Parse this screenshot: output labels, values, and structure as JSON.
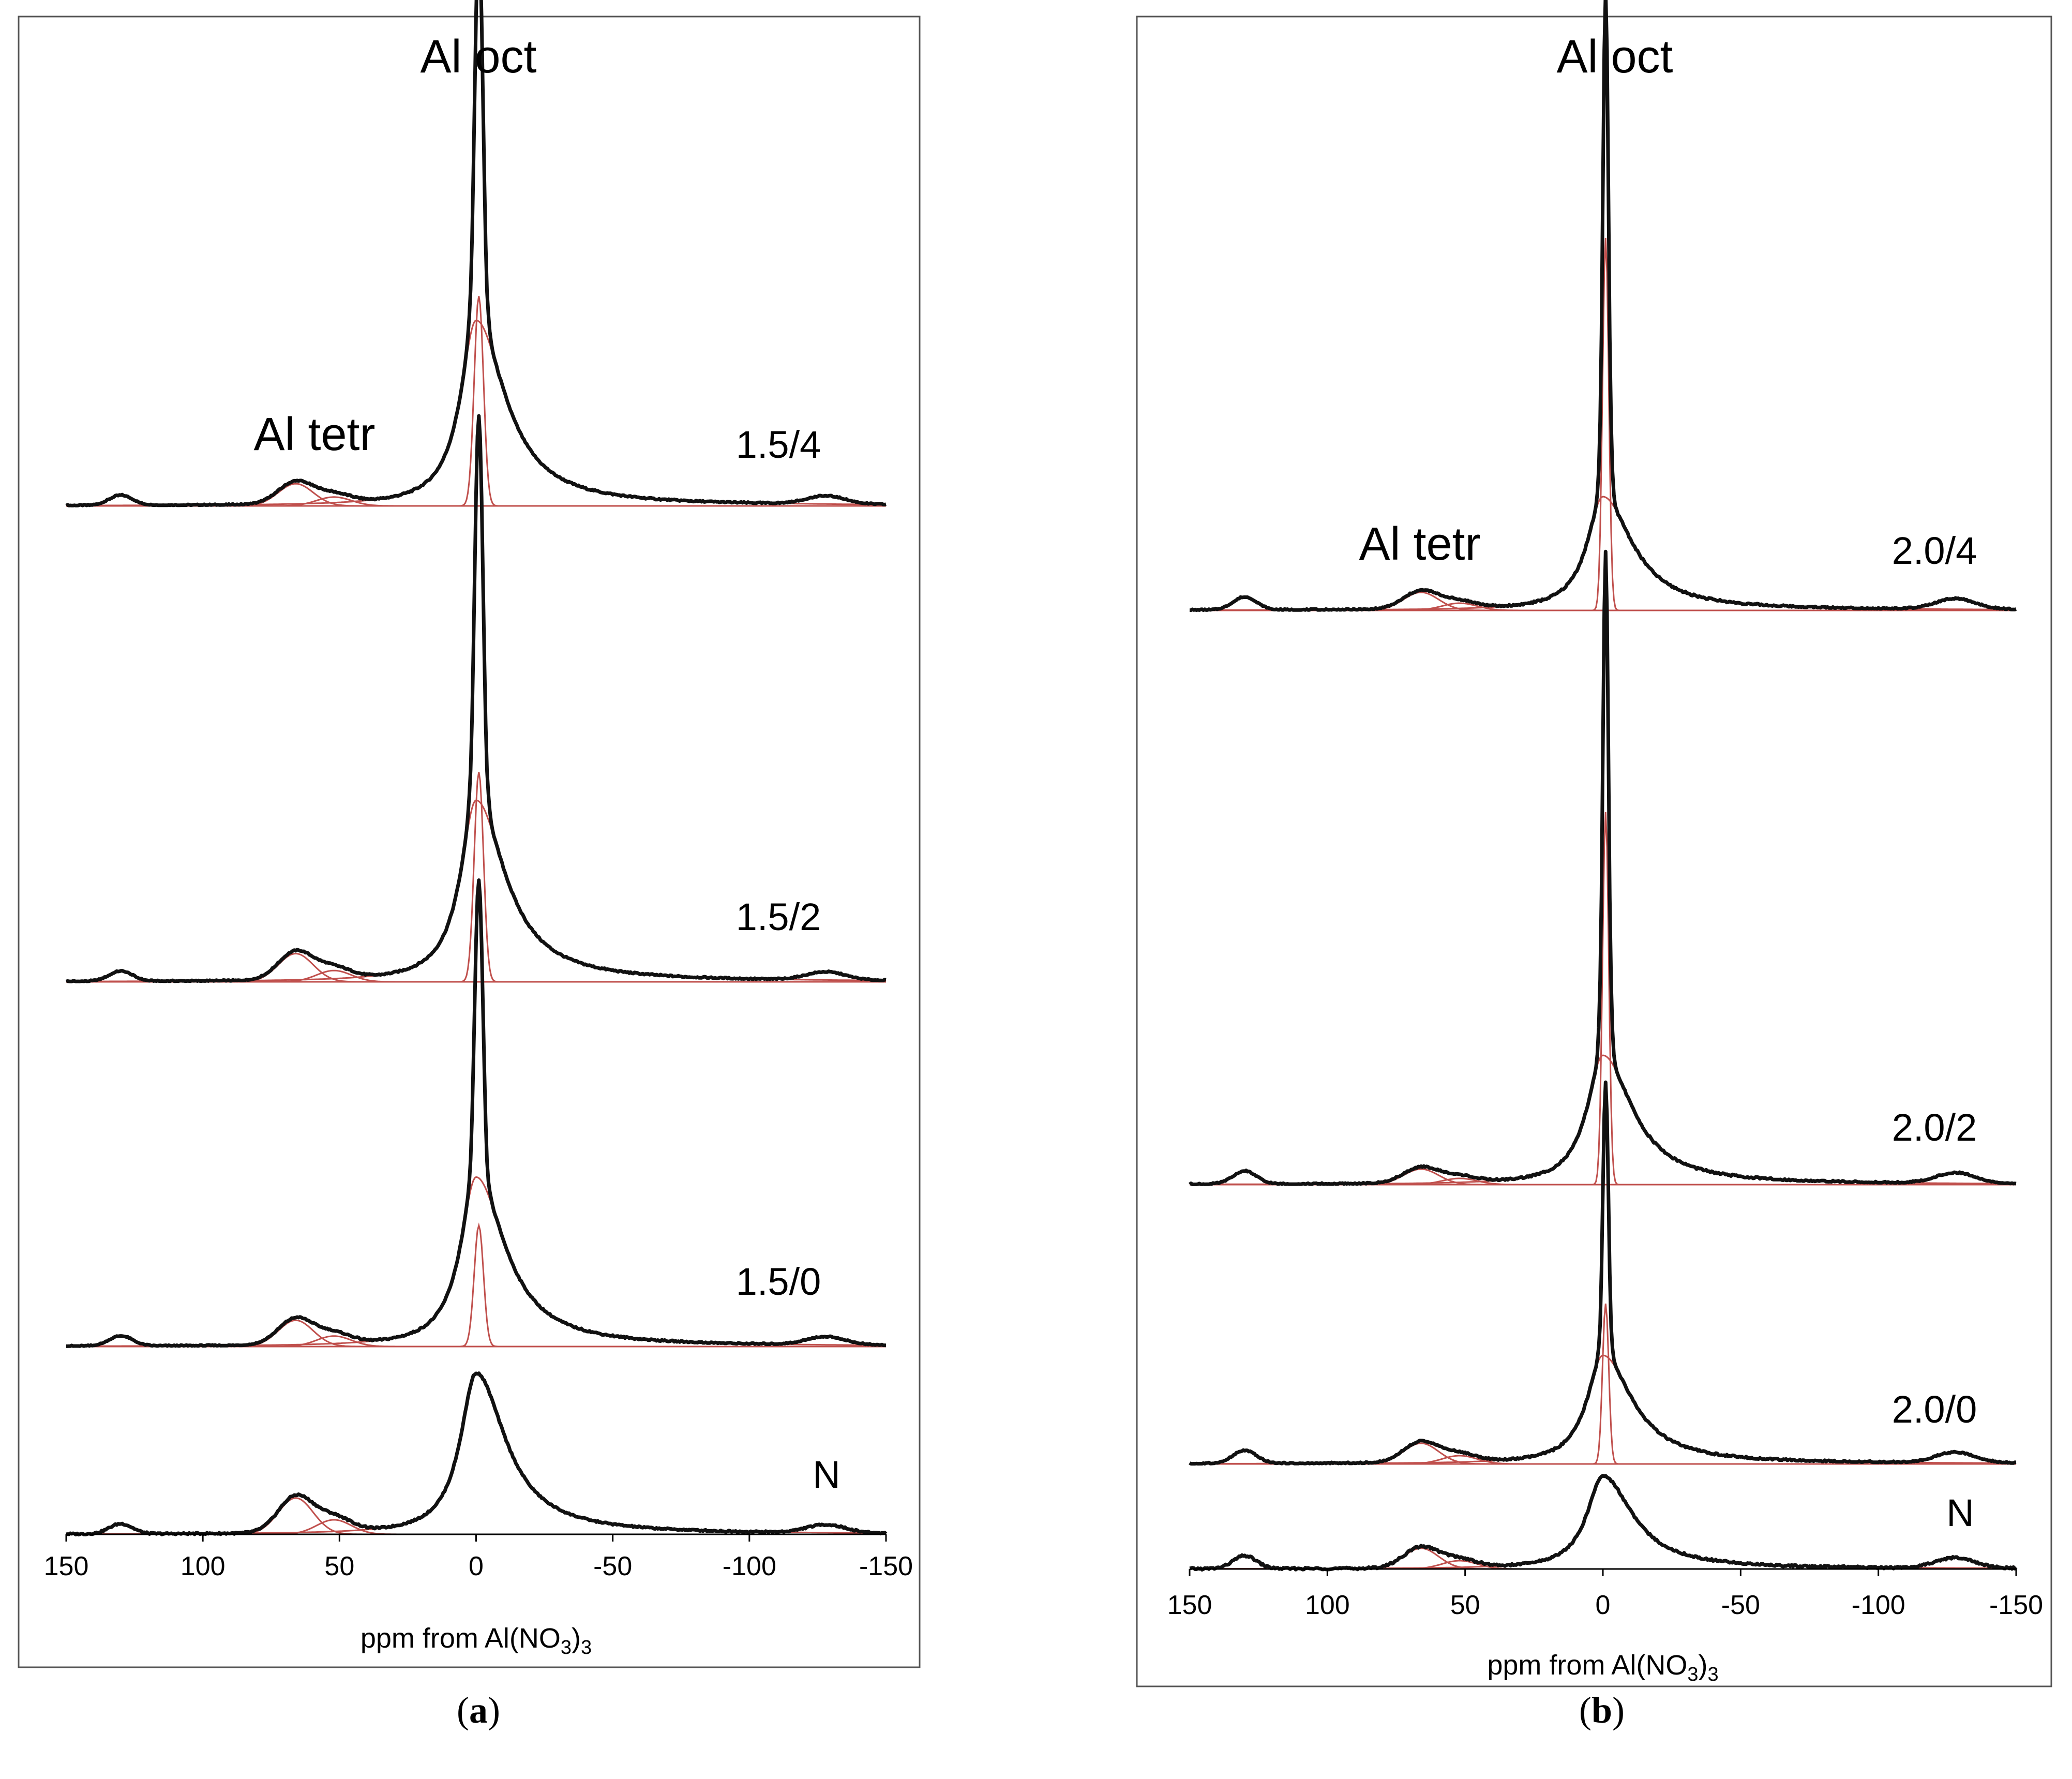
{
  "chart_data": [
    {
      "type": "line",
      "panel_label": "a",
      "xlabel": "ppm from Al(NO3)3",
      "xlabel_parts": {
        "main": "ppm from Al(NO",
        "sub": "3",
        "end": ")",
        "sub2": "3"
      },
      "xlim": [
        150,
        -150
      ],
      "xticks": [
        150,
        100,
        50,
        0,
        -50,
        -100,
        -150
      ],
      "xtick_labels": [
        "150",
        "100",
        "50",
        "0",
        "-50",
        "-100",
        "-150"
      ],
      "annotations": {
        "octahedral": "Al oct",
        "tetrahedral": "Al tetr"
      },
      "series": [
        {
          "name": "1.5/4",
          "oct_peak_height": 1.0,
          "narrow_component": 0.52,
          "broad_component": 0.46,
          "tetr_height": 0.055
        },
        {
          "name": "1.5/2",
          "oct_peak_height": 1.0,
          "narrow_component": 0.52,
          "broad_component": 0.45,
          "tetr_height": 0.07
        },
        {
          "name": "1.5/0",
          "oct_peak_height": 0.78,
          "narrow_component": 0.3,
          "broad_component": 0.42,
          "tetr_height": 0.065
        },
        {
          "name": "N",
          "oct_peak_height": 0.4,
          "narrow_component": 0.0,
          "broad_component": 0.4,
          "tetr_height": 0.09
        }
      ]
    },
    {
      "type": "line",
      "panel_label": "b",
      "xlabel": "ppm from Al(NO3)3",
      "xlabel_parts": {
        "main": "ppm from Al(NO",
        "sub": "3",
        "end": ")",
        "sub2": "3"
      },
      "xlim": [
        150,
        -150
      ],
      "xticks": [
        150,
        100,
        50,
        0,
        -50,
        -100,
        -150
      ],
      "xtick_labels": [
        "150",
        "100",
        "50",
        "0",
        "-50",
        "-100",
        "-150"
      ],
      "annotations": {
        "octahedral": "Al oct",
        "tetrahedral": "Al tetr"
      },
      "series": [
        {
          "name": "2.0/4",
          "oct_peak_height": 1.0,
          "narrow_component": 0.72,
          "broad_component": 0.22,
          "tetr_height": 0.035
        },
        {
          "name": "2.0/2",
          "oct_peak_height": 1.0,
          "narrow_component": 0.72,
          "broad_component": 0.25,
          "tetr_height": 0.03
        },
        {
          "name": "2.0/0",
          "oct_peak_height": 0.55,
          "narrow_component": 0.31,
          "broad_component": 0.21,
          "tetr_height": 0.04
        },
        {
          "name": "N",
          "oct_peak_height": 0.18,
          "narrow_component": 0.0,
          "broad_component": 0.18,
          "tetr_height": 0.04
        }
      ]
    }
  ]
}
